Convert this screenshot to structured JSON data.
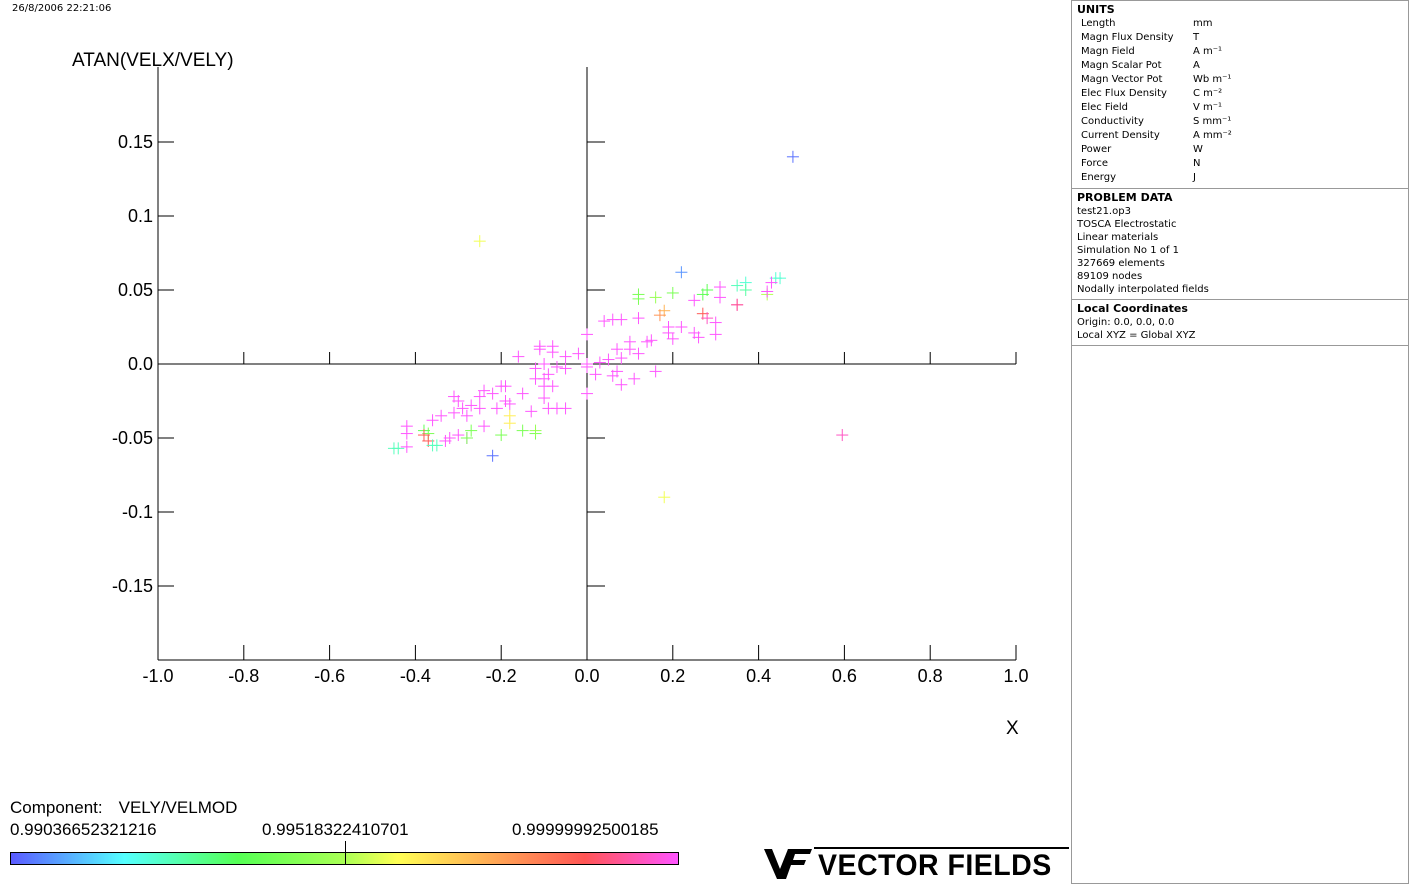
{
  "timestamp": "26/8/2006 22:21:06",
  "chart_data": {
    "type": "scatter",
    "marker": "plus",
    "ylabel": "ATAN(VELX/VELY)",
    "xlabel": "X",
    "xlim": [
      -1.0,
      1.0
    ],
    "ylim": [
      -0.2,
      0.2
    ],
    "x_ticks": [
      "-1.0",
      "-0.8",
      "-0.6",
      "-0.4",
      "-0.2",
      "0.0",
      "0.2",
      "0.4",
      "0.6",
      "0.8",
      "1.0"
    ],
    "y_ticks": [
      "0.15",
      "0.1",
      "0.05",
      "0.0",
      "-0.05",
      "-0.1",
      "-0.15"
    ],
    "y_tick_values": [
      0.15,
      0.1,
      0.05,
      0.0,
      -0.05,
      -0.1,
      -0.15
    ],
    "color_scale": [
      "#5a5aff",
      "#55ffff",
      "#55ff55",
      "#aaff55",
      "#ffff55",
      "#ffaa55",
      "#ff5555",
      "#ff55ff"
    ],
    "points": [
      [
        0.48,
        0.14,
        0.02
      ],
      [
        0.22,
        0.062,
        0.05
      ],
      [
        -0.25,
        0.083,
        0.55
      ],
      [
        0.18,
        -0.09,
        0.55
      ],
      [
        0.595,
        -0.048,
        0.95
      ],
      [
        -0.22,
        -0.062,
        0.02
      ],
      [
        0.45,
        0.058,
        0.18
      ],
      [
        0.44,
        0.058,
        0.18
      ],
      [
        0.37,
        0.055,
        0.18
      ],
      [
        0.35,
        0.053,
        0.2
      ],
      [
        0.37,
        0.05,
        0.22
      ],
      [
        0.28,
        0.05,
        0.3
      ],
      [
        0.27,
        0.047,
        0.3
      ],
      [
        0.2,
        0.048,
        0.35
      ],
      [
        0.12,
        0.047,
        0.35
      ],
      [
        0.12,
        0.044,
        0.35
      ],
      [
        0.16,
        0.045,
        0.4
      ],
      [
        0.42,
        0.047,
        0.45
      ],
      [
        0.43,
        0.055,
        1.0
      ],
      [
        0.42,
        0.049,
        1.0
      ],
      [
        0.31,
        0.052,
        1.0
      ],
      [
        0.31,
        0.045,
        1.0
      ],
      [
        0.25,
        0.043,
        1.0
      ],
      [
        0.35,
        0.04,
        1.0
      ],
      [
        0.35,
        0.04,
        0.9
      ],
      [
        0.18,
        0.036,
        0.7
      ],
      [
        0.17,
        0.033,
        0.75
      ],
      [
        0.27,
        0.034,
        0.85
      ],
      [
        0.28,
        0.031,
        0.95
      ],
      [
        0.3,
        0.028,
        1.0
      ],
      [
        0.22,
        0.025,
        1.0
      ],
      [
        0.19,
        0.025,
        1.0
      ],
      [
        0.19,
        0.021,
        1.0
      ],
      [
        0.25,
        0.021,
        1.0
      ],
      [
        0.26,
        0.018,
        1.0
      ],
      [
        0.3,
        0.02,
        1.0
      ],
      [
        0.2,
        0.017,
        1.0
      ],
      [
        0.15,
        0.016,
        1.0
      ],
      [
        0.14,
        0.015,
        1.0
      ],
      [
        0.12,
        0.031,
        1.0
      ],
      [
        0.08,
        0.03,
        1.0
      ],
      [
        0.06,
        0.03,
        1.0
      ],
      [
        0.04,
        0.029,
        1.0
      ],
      [
        0.0,
        0.02,
        1.0
      ],
      [
        0.1,
        0.015,
        1.0
      ],
      [
        0.1,
        0.01,
        1.0
      ],
      [
        0.07,
        0.01,
        1.0
      ],
      [
        0.12,
        0.007,
        1.0
      ],
      [
        0.08,
        0.004,
        1.0
      ],
      [
        0.05,
        0.003,
        1.0
      ],
      [
        0.03,
        0.001,
        1.0
      ],
      [
        0.0,
        0.0,
        1.0
      ],
      [
        0.0,
        -0.002,
        1.0
      ],
      [
        0.02,
        -0.007,
        1.0
      ],
      [
        0.06,
        -0.008,
        1.0
      ],
      [
        0.07,
        -0.005,
        1.0
      ],
      [
        0.11,
        -0.01,
        1.0
      ],
      [
        0.16,
        -0.005,
        1.0
      ],
      [
        0.08,
        -0.014,
        1.0
      ],
      [
        0.0,
        -0.02,
        1.0
      ],
      [
        -0.02,
        0.007,
        1.0
      ],
      [
        -0.05,
        0.005,
        1.0
      ],
      [
        -0.07,
        -0.002,
        1.0
      ],
      [
        -0.05,
        -0.003,
        1.0
      ],
      [
        -0.08,
        0.012,
        1.0
      ],
      [
        -0.08,
        0.008,
        1.0
      ],
      [
        -0.11,
        0.012,
        1.0
      ],
      [
        -0.11,
        0.01,
        1.0
      ],
      [
        -0.16,
        0.005,
        1.0
      ],
      [
        -0.1,
        0.0,
        1.0
      ],
      [
        -0.12,
        -0.003,
        1.0
      ],
      [
        -0.09,
        -0.007,
        1.0
      ],
      [
        -0.1,
        -0.01,
        1.0
      ],
      [
        -0.08,
        -0.015,
        1.0
      ],
      [
        -0.1,
        -0.015,
        1.0
      ],
      [
        -0.12,
        -0.01,
        1.0
      ],
      [
        -0.19,
        -0.015,
        1.0
      ],
      [
        -0.2,
        -0.015,
        1.0
      ],
      [
        -0.15,
        -0.02,
        1.0
      ],
      [
        -0.22,
        -0.02,
        1.0
      ],
      [
        -0.24,
        -0.018,
        1.0
      ],
      [
        -0.25,
        -0.022,
        1.0
      ],
      [
        -0.19,
        -0.025,
        1.0
      ],
      [
        -0.18,
        -0.027,
        1.0
      ],
      [
        -0.21,
        -0.03,
        1.0
      ],
      [
        -0.1,
        -0.023,
        1.0
      ],
      [
        -0.07,
        -0.03,
        1.0
      ],
      [
        -0.05,
        -0.03,
        1.0
      ],
      [
        -0.09,
        -0.03,
        1.0
      ],
      [
        -0.13,
        -0.032,
        1.0
      ],
      [
        -0.25,
        -0.03,
        1.0
      ],
      [
        -0.27,
        -0.028,
        1.0
      ],
      [
        -0.29,
        -0.03,
        1.0
      ],
      [
        -0.3,
        -0.025,
        1.0
      ],
      [
        -0.31,
        -0.022,
        1.0
      ],
      [
        -0.28,
        -0.035,
        1.0
      ],
      [
        -0.31,
        -0.033,
        1.0
      ],
      [
        -0.34,
        -0.035,
        1.0
      ],
      [
        -0.36,
        -0.038,
        1.0
      ],
      [
        -0.32,
        -0.05,
        1.0
      ],
      [
        -0.3,
        -0.048,
        1.0
      ],
      [
        -0.28,
        -0.05,
        1.0
      ],
      [
        -0.24,
        -0.042,
        1.0
      ],
      [
        -0.2,
        -0.048,
        0.35
      ],
      [
        -0.15,
        -0.045,
        0.35
      ],
      [
        -0.12,
        -0.047,
        0.35
      ],
      [
        -0.12,
        -0.045,
        0.4
      ],
      [
        -0.18,
        -0.04,
        0.6
      ],
      [
        -0.18,
        -0.035,
        0.6
      ],
      [
        -0.27,
        -0.045,
        0.35
      ],
      [
        -0.28,
        -0.05,
        0.35
      ],
      [
        -0.33,
        -0.052,
        1.0
      ],
      [
        -0.37,
        -0.047,
        0.35
      ],
      [
        -0.38,
        -0.045,
        0.3
      ],
      [
        -0.38,
        -0.048,
        0.85
      ],
      [
        -0.37,
        -0.052,
        0.85
      ],
      [
        -0.36,
        -0.055,
        0.2
      ],
      [
        -0.35,
        -0.055,
        0.2
      ],
      [
        -0.42,
        -0.042,
        1.0
      ],
      [
        -0.42,
        -0.047,
        1.0
      ],
      [
        -0.42,
        -0.056,
        1.0
      ],
      [
        -0.44,
        -0.057,
        0.2
      ],
      [
        -0.45,
        -0.057,
        0.2
      ]
    ]
  },
  "legend": {
    "label": "Component:",
    "component": "VELY/VELMOD",
    "min": "0.99036652321216",
    "mid": "0.99518322410701",
    "max": "0.99999992500185"
  },
  "units_panel": {
    "title": "UNITS",
    "rows": [
      {
        "name": "Length",
        "unit": "mm"
      },
      {
        "name": "Magn Flux Density",
        "unit": "T"
      },
      {
        "name": "Magn Field",
        "unit": "A m⁻¹"
      },
      {
        "name": "Magn Scalar Pot",
        "unit": "A"
      },
      {
        "name": "Magn Vector Pot",
        "unit": "Wb m⁻¹"
      },
      {
        "name": "Elec Flux Density",
        "unit": "C m⁻²"
      },
      {
        "name": "Elec Field",
        "unit": "V m⁻¹"
      },
      {
        "name": "Conductivity",
        "unit": "S mm⁻¹"
      },
      {
        "name": "Current Density",
        "unit": "A mm⁻²"
      },
      {
        "name": "Power",
        "unit": "W"
      },
      {
        "name": "Force",
        "unit": "N"
      },
      {
        "name": "Energy",
        "unit": "J"
      }
    ]
  },
  "problem_data": {
    "title": "PROBLEM DATA",
    "lines": [
      "test21.op3",
      "TOSCA Electrostatic",
      "Linear materials",
      "Simulation No 1 of 1",
      "327669 elements",
      "89109 nodes",
      "Nodally interpolated fields"
    ]
  },
  "local_coords": {
    "title": "Local Coordinates",
    "lines": [
      "Origin: 0.0, 0.0, 0.0",
      "Local XYZ = Global XYZ"
    ]
  },
  "logo": {
    "mark": "VF",
    "text": "VECTOR FIELDS"
  }
}
